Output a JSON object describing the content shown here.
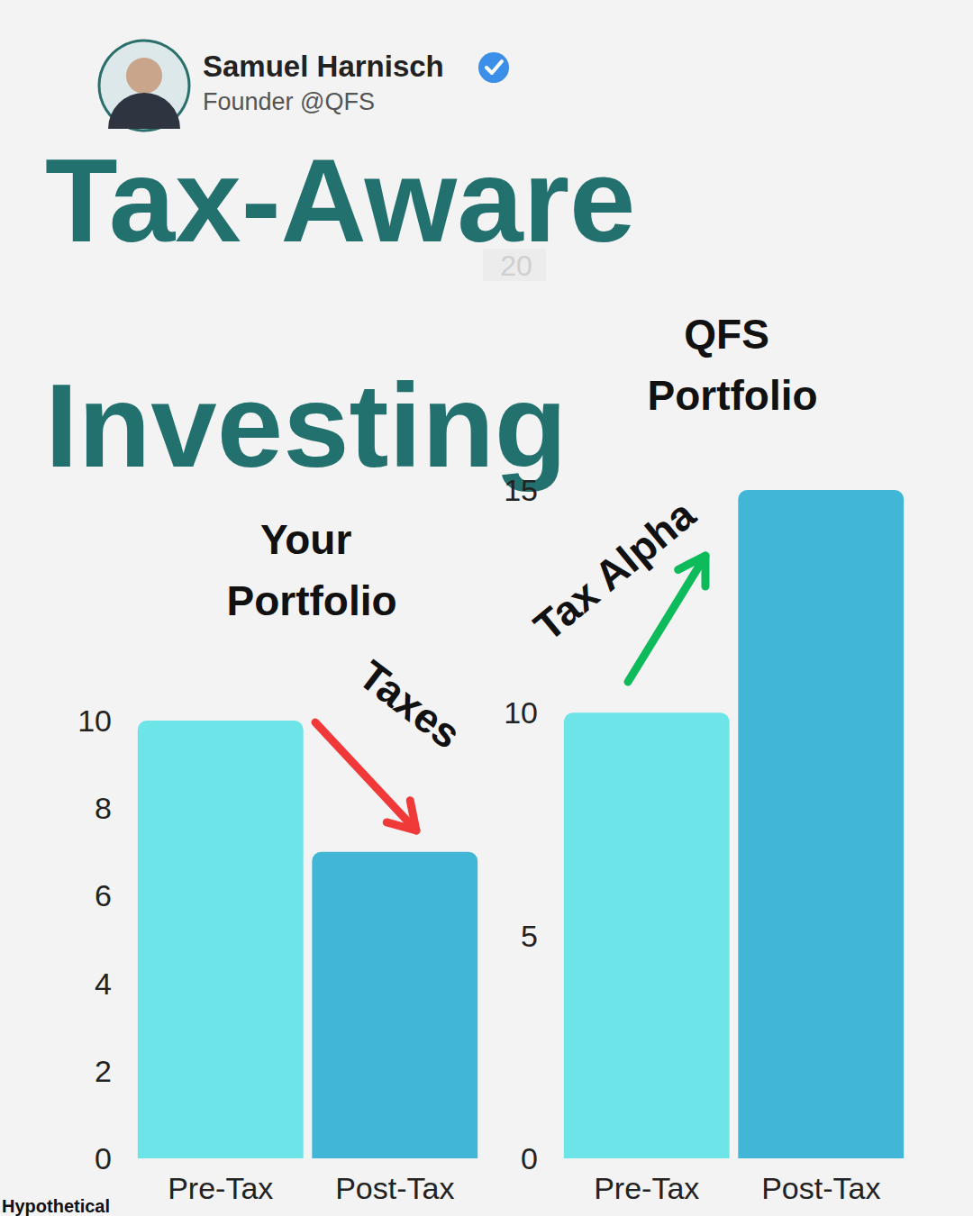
{
  "header": {
    "name": "Samuel Harnisch",
    "role": "Founder @QFS",
    "title": "Tax-Aware Investing",
    "stray_text": "20"
  },
  "chart_data": [
    {
      "type": "bar",
      "title": "Your Portfolio",
      "categories": [
        "Pre-Tax",
        "Post-Tax"
      ],
      "values": [
        10,
        7
      ],
      "colors": [
        "#6ce4e8",
        "#41b6d6"
      ],
      "ylim": [
        0,
        10
      ],
      "yticks": [
        0,
        2,
        4,
        6,
        8,
        10
      ],
      "grid": false,
      "annotation": "Taxes"
    },
    {
      "type": "bar",
      "title": "QFS Portfolio",
      "categories": [
        "Pre-Tax",
        "Post-Tax"
      ],
      "values": [
        10,
        15
      ],
      "colors": [
        "#6ce4e8",
        "#41b6d6"
      ],
      "ylim": [
        0,
        15
      ],
      "yticks": [
        0,
        5,
        10,
        15
      ],
      "grid": false,
      "annotation": "Tax Alpha"
    }
  ],
  "footnote": "Hypothetical"
}
